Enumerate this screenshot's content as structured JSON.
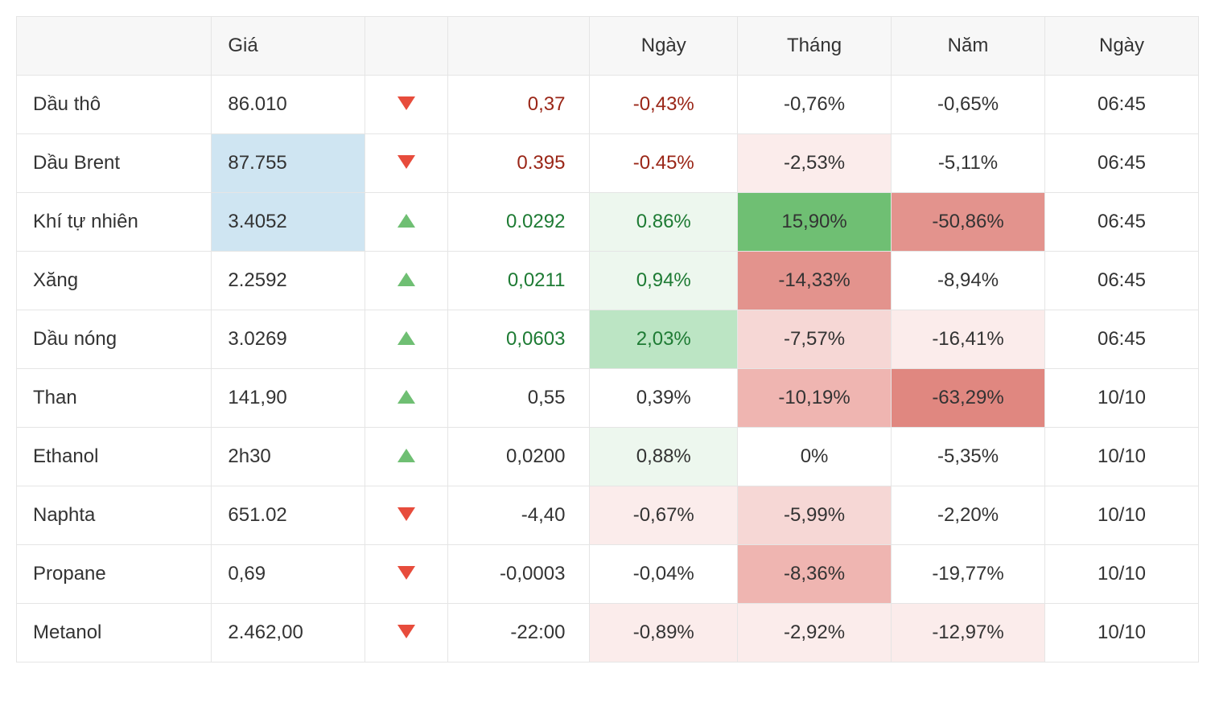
{
  "table": {
    "columns": [
      "",
      "Giá",
      "",
      "",
      "Ngày",
      "Tháng",
      "Năm",
      "Ngày"
    ],
    "col_classes": [
      "col-name",
      "col-price",
      "col-arrow",
      "col-change",
      "col-day",
      "col-month",
      "col-year",
      "col-time"
    ],
    "styling": {
      "header_bg": "#f7f7f7",
      "border_color": "#e5e5e5",
      "font_size": 24,
      "text_color": "#333333",
      "up_arrow_color": "#6fbf73",
      "down_arrow_color": "#e74c3c",
      "change_up_color": "#1e7b34",
      "change_down_color": "#9a2617",
      "heatmap_palette": {
        "blue_light": "#cfe5f2",
        "green_faint": "#edf7ee",
        "green_light": "#d4edda",
        "green_mid": "#bce5c4",
        "green_strong": "#6fbf73",
        "red_faint": "#fbeceb",
        "red_light": "#f6d7d5",
        "red_mid": "#efb5b1",
        "red_strong": "#e3938d",
        "red_strongest": "#e08780"
      }
    },
    "rows": [
      {
        "name": "Dầu thô",
        "price": "86.010",
        "price_bg": "",
        "direction": "down",
        "change": "0,37",
        "change_color": "#9a2617",
        "day": "-0,43%",
        "day_color": "#9a2617",
        "day_bg": "",
        "month": "-0,76%",
        "month_color": "#333333",
        "month_bg": "",
        "year": "-0,65%",
        "year_color": "#333333",
        "year_bg": "",
        "time": "06:45"
      },
      {
        "name": "Dầu Brent",
        "price": "87.755",
        "price_bg": "#cfe5f2",
        "direction": "down",
        "change": "0.395",
        "change_color": "#9a2617",
        "day": "-0.45%",
        "day_color": "#9a2617",
        "day_bg": "",
        "month": "-2,53%",
        "month_color": "#333333",
        "month_bg": "#fbeceb",
        "year": "-5,11%",
        "year_color": "#333333",
        "year_bg": "",
        "time": "06:45"
      },
      {
        "name": "Khí tự nhiên",
        "price": "3.4052",
        "price_bg": "#cfe5f2",
        "direction": "up",
        "change": "0.0292",
        "change_color": "#1e7b34",
        "day": "0.86%",
        "day_color": "#1e7b34",
        "day_bg": "#edf7ee",
        "month": "15,90%",
        "month_color": "#333333",
        "month_bg": "#6fbf73",
        "year": "-50,86%",
        "year_color": "#333333",
        "year_bg": "#e3938d",
        "time": "06:45"
      },
      {
        "name": "Xăng",
        "price": "2.2592",
        "price_bg": "",
        "direction": "up",
        "change": "0,0211",
        "change_color": "#1e7b34",
        "day": "0,94%",
        "day_color": "#1e7b34",
        "day_bg": "#edf7ee",
        "month": "-14,33%",
        "month_color": "#333333",
        "month_bg": "#e3938d",
        "year": "-8,94%",
        "year_color": "#333333",
        "year_bg": "",
        "time": "06:45"
      },
      {
        "name": "Dầu nóng",
        "price": "3.0269",
        "price_bg": "",
        "direction": "up",
        "change": "0,0603",
        "change_color": "#1e7b34",
        "day": "2,03%",
        "day_color": "#1e7b34",
        "day_bg": "#bce5c4",
        "month": "-7,57%",
        "month_color": "#333333",
        "month_bg": "#f6d7d5",
        "year": "-16,41%",
        "year_color": "#333333",
        "year_bg": "#fbeceb",
        "time": "06:45"
      },
      {
        "name": "Than",
        "price": "141,90",
        "price_bg": "",
        "direction": "up",
        "change": "0,55",
        "change_color": "#333333",
        "day": "0,39%",
        "day_color": "#333333",
        "day_bg": "",
        "month": "-10,19%",
        "month_color": "#333333",
        "month_bg": "#efb5b1",
        "year": "-63,29%",
        "year_color": "#333333",
        "year_bg": "#e08780",
        "time": "10/10"
      },
      {
        "name": "Ethanol",
        "price": "2h30",
        "price_bg": "",
        "direction": "up",
        "change": "0,0200",
        "change_color": "#333333",
        "day": "0,88%",
        "day_color": "#333333",
        "day_bg": "#edf7ee",
        "month": "0%",
        "month_color": "#333333",
        "month_bg": "",
        "year": "-5,35%",
        "year_color": "#333333",
        "year_bg": "",
        "time": "10/10"
      },
      {
        "name": "Naphta",
        "price": "651.02",
        "price_bg": "",
        "direction": "down",
        "change": "-4,40",
        "change_color": "#333333",
        "day": "-0,67%",
        "day_color": "#333333",
        "day_bg": "#fbeceb",
        "month": "-5,99%",
        "month_color": "#333333",
        "month_bg": "#f6d7d5",
        "year": "-2,20%",
        "year_color": "#333333",
        "year_bg": "",
        "time": "10/10"
      },
      {
        "name": "Propane",
        "price": "0,69",
        "price_bg": "",
        "direction": "down",
        "change": "-0,0003",
        "change_color": "#333333",
        "day": "-0,04%",
        "day_color": "#333333",
        "day_bg": "",
        "month": "-8,36%",
        "month_color": "#333333",
        "month_bg": "#efb5b1",
        "year": "-19,77%",
        "year_color": "#333333",
        "year_bg": "",
        "time": "10/10"
      },
      {
        "name": "Metanol",
        "price": "2.462,00",
        "price_bg": "",
        "direction": "down",
        "change": "-22:00",
        "change_color": "#333333",
        "day": "-0,89%",
        "day_color": "#333333",
        "day_bg": "#fbeceb",
        "month": "-2,92%",
        "month_color": "#333333",
        "month_bg": "#fbeceb",
        "year": "-12,97%",
        "year_color": "#333333",
        "year_bg": "#fbeceb",
        "time": "10/10"
      }
    ]
  }
}
